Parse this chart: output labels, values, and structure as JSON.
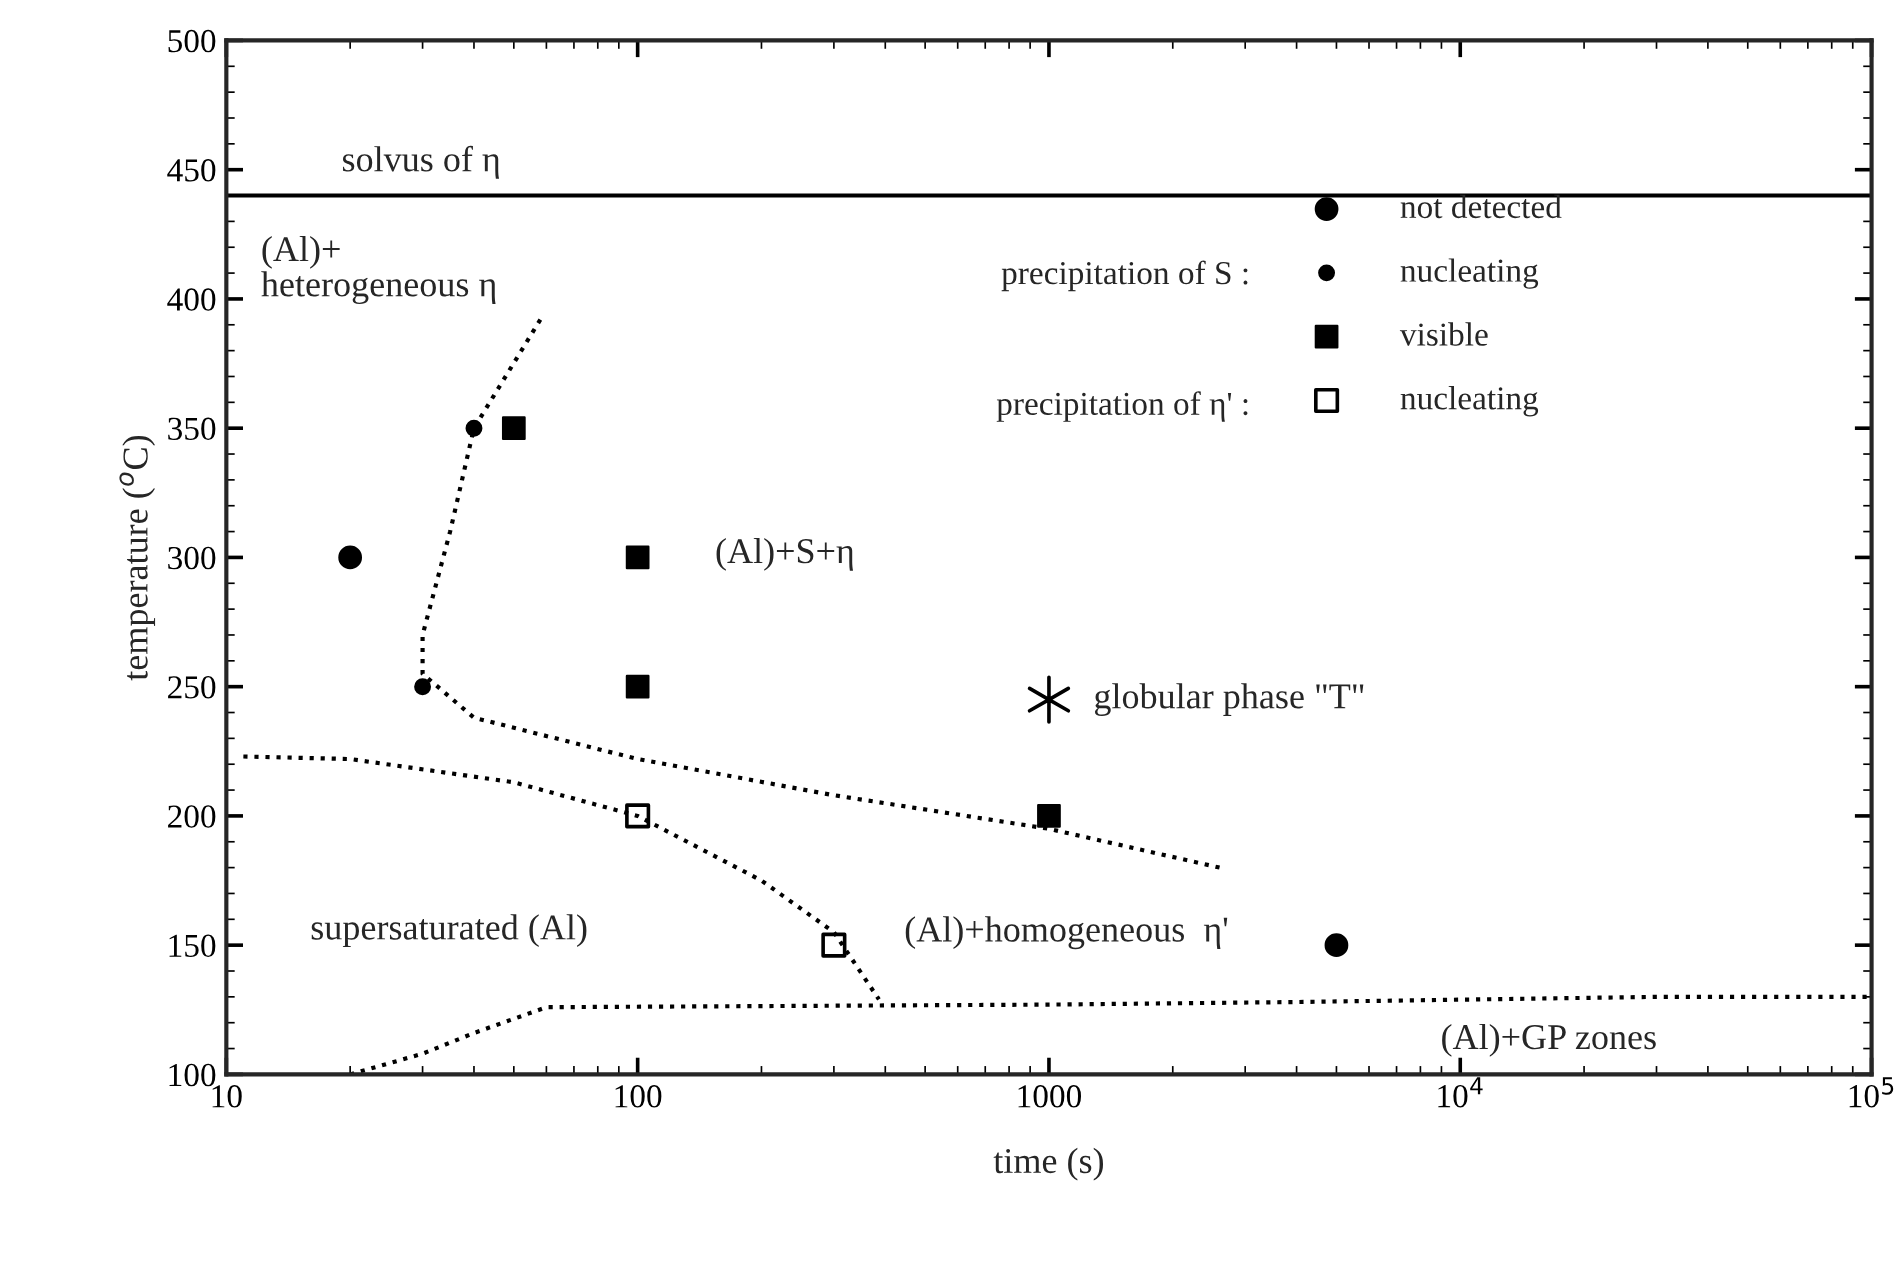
{
  "chart_data": {
    "type": "scatter",
    "xlabel": "time (s)",
    "ylabel": "temperature ($^{o}$C)",
    "log": "x",
    "xlim": [
      10,
      100000
    ],
    "xticks": [
      10,
      100,
      1000,
      {
        "value": 10000,
        "label": "10$^{4}$"
      },
      {
        "value": 100000,
        "label": "10$^{5}$"
      }
    ],
    "ylim": [
      100,
      500
    ],
    "yticks": [
      100,
      150,
      200,
      250,
      300,
      350,
      400,
      450,
      500
    ],
    "grid": false,
    "legend": "top right",
    "series": [
      {
        "name": "not detected",
        "marker": "circle",
        "color": "#000000",
        "x": [
          20,
          5000
        ],
        "values": [
          300,
          150
        ]
      },
      {
        "name": "nucleating",
        "marker": "circle",
        "color": "#000000",
        "x": [
          40,
          30
        ],
        "values": [
          350,
          250
        ]
      },
      {
        "name": "visible",
        "marker": "square",
        "color": "#000000",
        "x": [
          50,
          100,
          100,
          1000
        ],
        "values": [
          350,
          300,
          250,
          200
        ]
      },
      {
        "name": "nucleating",
        "marker": "square",
        "color": "#000000",
        "x": [
          100,
          300
        ],
        "values": [
          200,
          150
        ]
      },
      {
        "name": "globular phase \"T\"",
        "marker": "cross",
        "color": "#000000",
        "x": [
          1000
        ],
        "values": [
          245
        ]
      },
      {
        "type": "line",
        "marker": "none",
        "line_style": "dotted",
        "color": "#000000",
        "x": [
          58,
          40,
          35,
          30,
          30,
          40,
          100,
          300,
          1000,
          2600
        ],
        "values": [
          392,
          350,
          310,
          270,
          255,
          238,
          222,
          208,
          195,
          180
        ]
      },
      {
        "type": "line",
        "marker": "none",
        "line_style": "dotted",
        "color": "#000000",
        "x": [
          11,
          20,
          50,
          100,
          200,
          300,
          386
        ],
        "values": [
          223,
          222,
          213,
          200,
          175,
          155,
          129
        ]
      },
      {
        "type": "line",
        "marker": "none",
        "line_style": "dotted",
        "color": "#000000",
        "x": [
          20,
          30,
          40,
          60,
          1000,
          4000,
          30000,
          100000
        ],
        "values": [
          100,
          108,
          116,
          126,
          127,
          128,
          130,
          130
        ]
      }
    ],
    "ref_lines": [
      {
        "axis": "y",
        "value": 440,
        "label": "solvus of η",
        "color": "#000000",
        "line_style": "solid"
      }
    ],
    "annotations": [
      "precipitation of S :",
      "precipitation of η' :",
      "(Al)+\nheterogeneous η",
      "(Al)+S+η",
      "supersaturated (Al)",
      "(Al)+homogeneous  η'",
      "(Al)+GP zones"
    ]
  }
}
